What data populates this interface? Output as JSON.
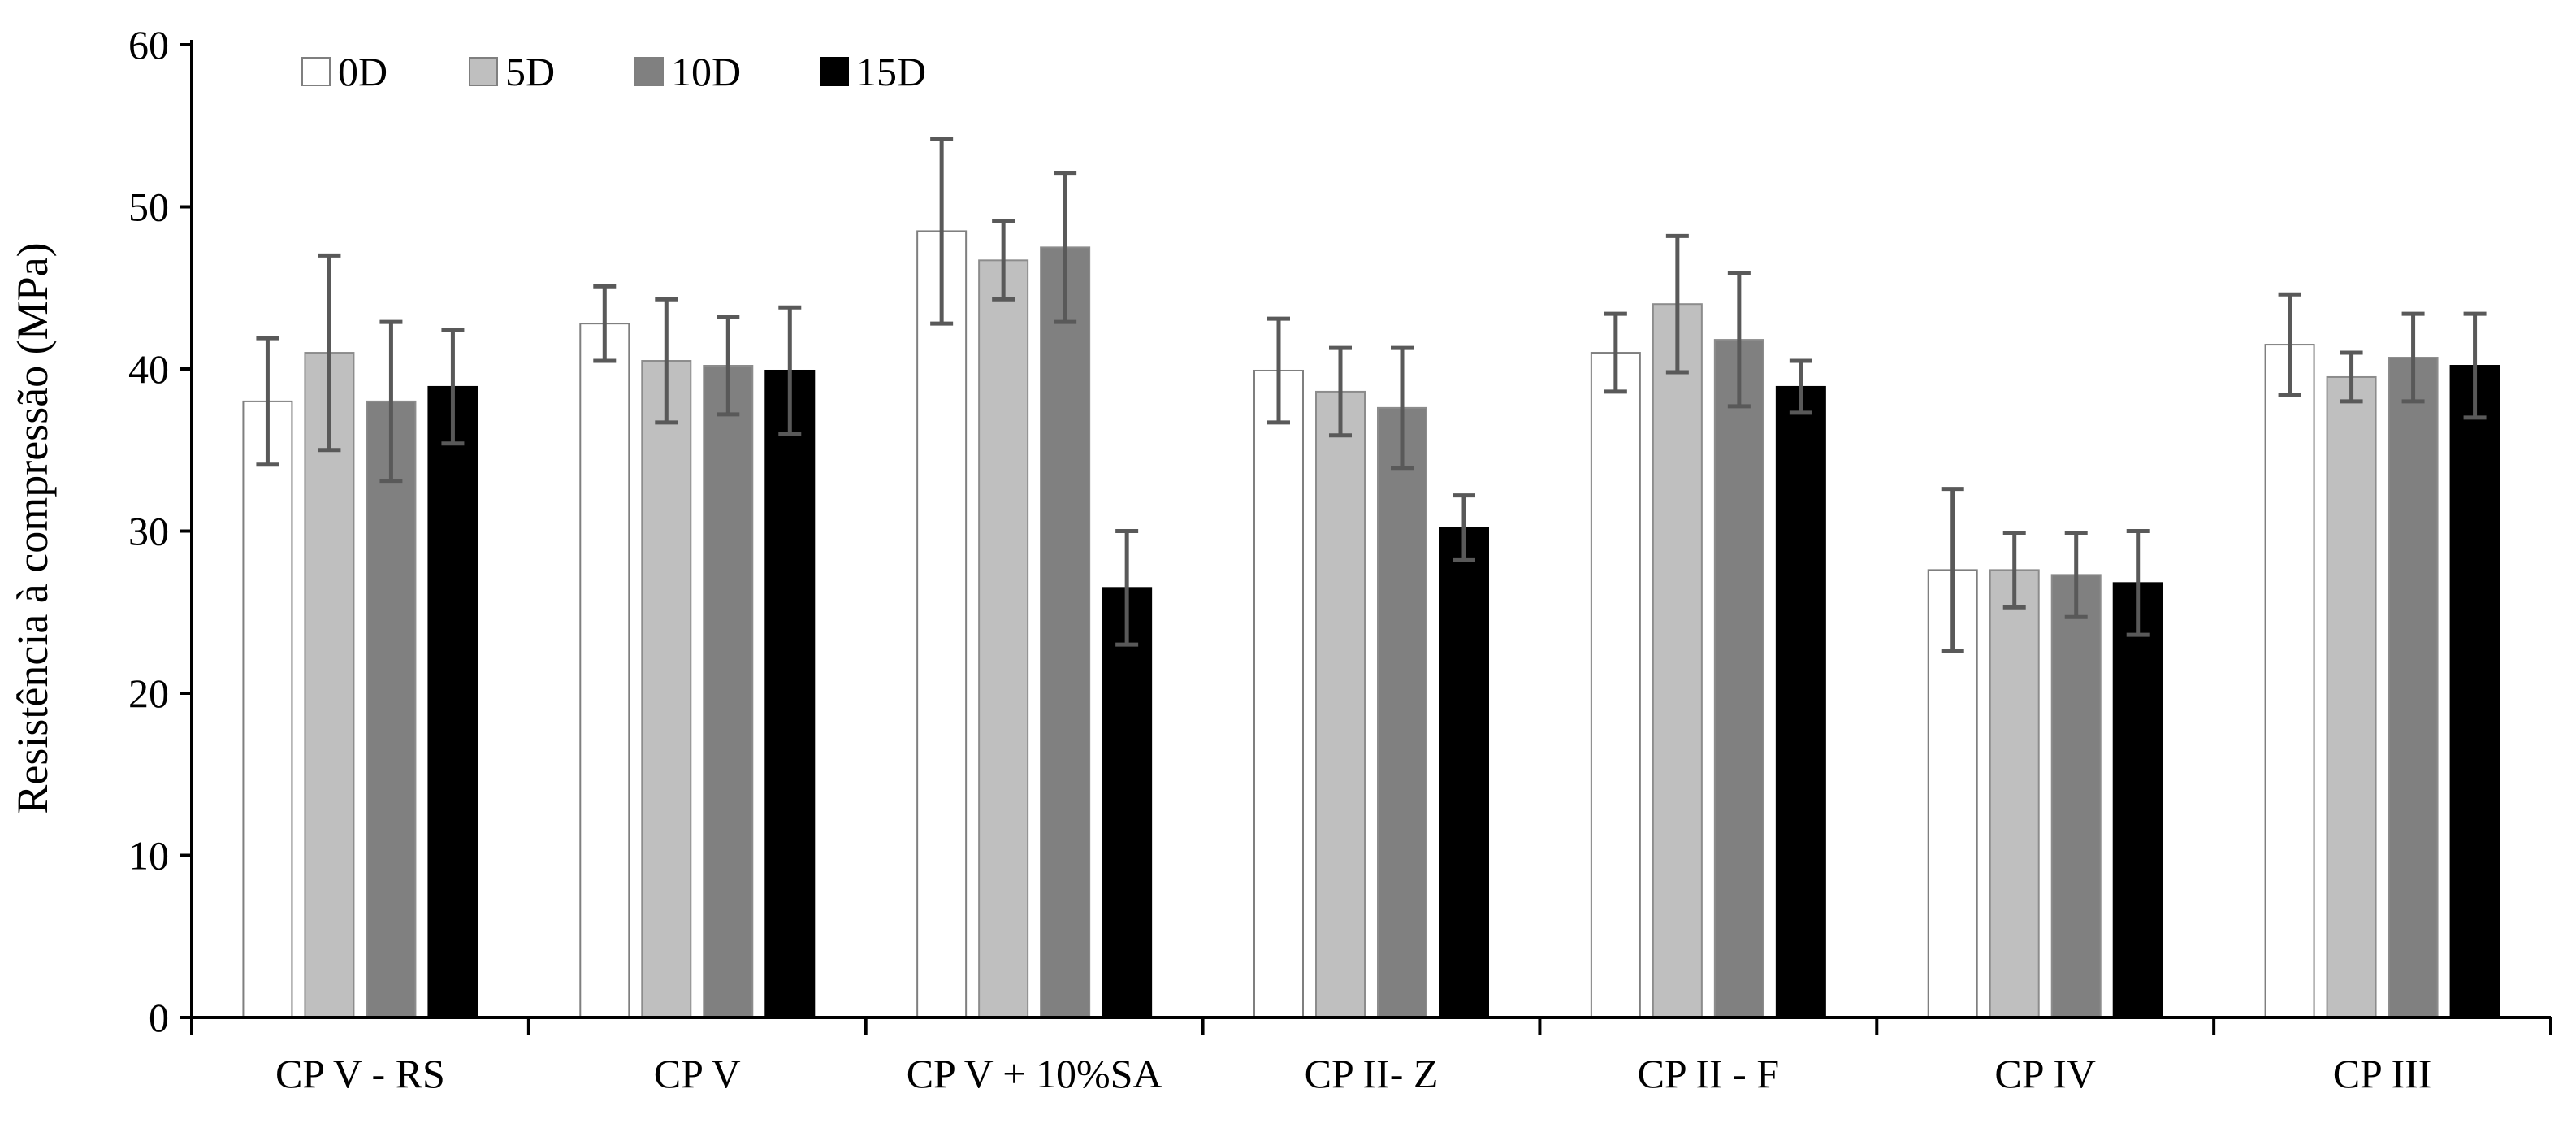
{
  "chart_data": {
    "type": "bar",
    "title": "",
    "xlabel": "",
    "ylabel": "Resistência à compressão (MPa)",
    "ylim": [
      0,
      60
    ],
    "yticks": [
      0,
      10,
      20,
      30,
      40,
      50,
      60
    ],
    "grid": false,
    "legend_position": "top-left",
    "categories": [
      "CP V - RS",
      "CP V",
      "CP V + 10%SA",
      "CP II- Z",
      "CP II - F",
      "CP IV",
      "CP III"
    ],
    "series": [
      {
        "name": "0D",
        "color": "#ffffff",
        "values": [
          38.0,
          42.8,
          48.5,
          39.9,
          41.0,
          27.6,
          41.5
        ],
        "errors": [
          3.9,
          2.3,
          5.7,
          3.2,
          2.4,
          5.0,
          3.1
        ]
      },
      {
        "name": "5D",
        "color": "#bfbfbf",
        "values": [
          41.0,
          40.5,
          46.7,
          38.6,
          44.0,
          27.6,
          39.5
        ],
        "errors": [
          6.0,
          3.8,
          2.4,
          2.7,
          4.2,
          2.3,
          1.5
        ]
      },
      {
        "name": "10D",
        "color": "#808080",
        "values": [
          38.0,
          40.2,
          47.5,
          37.6,
          41.8,
          27.3,
          40.7
        ],
        "errors": [
          4.9,
          3.0,
          4.6,
          3.7,
          4.1,
          2.6,
          2.7
        ]
      },
      {
        "name": "15D",
        "color": "#000000",
        "values": [
          38.9,
          39.9,
          26.5,
          30.2,
          38.9,
          26.8,
          40.2
        ],
        "errors": [
          3.5,
          3.9,
          3.5,
          2.0,
          1.6,
          3.2,
          3.2
        ]
      }
    ]
  }
}
